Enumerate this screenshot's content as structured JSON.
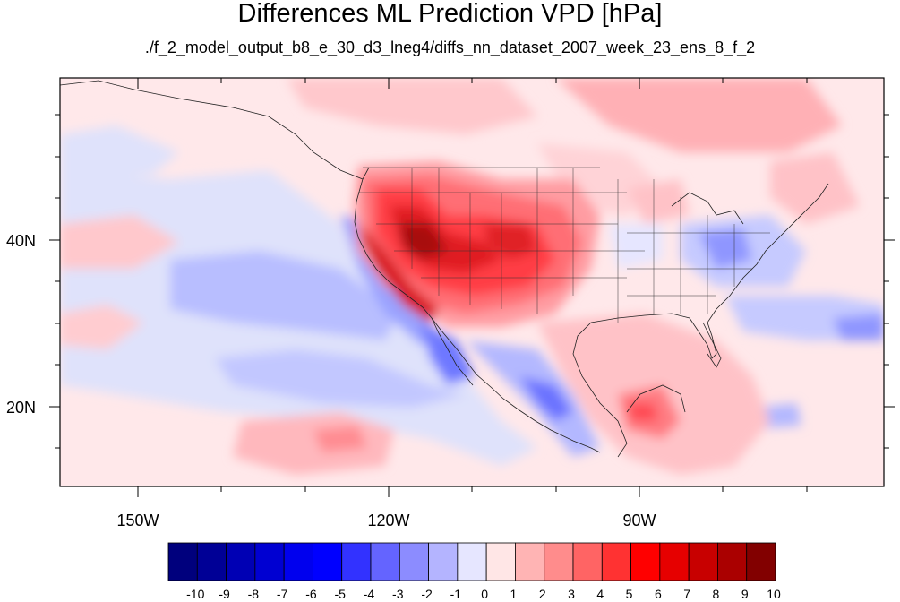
{
  "title": "Differences ML Prediction VPD [hPa]",
  "subtitle": "./f_2_model_output_b8_e_30_d3_lneg4/diffs_nn_dataset_2007_week_23_ens_8_f_2",
  "axes": {
    "lon_labels": [
      "150W",
      "120W",
      "90W"
    ],
    "lat_labels": [
      "40N",
      "20N"
    ]
  },
  "colorbar": {
    "labels": [
      "-10",
      "-9",
      "-8",
      "-7",
      "-6",
      "-5",
      "-4",
      "-3",
      "-2",
      "-1",
      "0",
      "1",
      "2",
      "3",
      "4",
      "5",
      "6",
      "7",
      "8",
      "9",
      "10"
    ],
    "colors": [
      "#00007d",
      "#000096",
      "#0000b4",
      "#0000d2",
      "#0000ee",
      "#0000ff",
      "#3232ff",
      "#6464ff",
      "#8c8cff",
      "#b4b4ff",
      "#e6e6ff",
      "#ffe6e6",
      "#ffb4b4",
      "#ff8c8c",
      "#ff6464",
      "#ff3232",
      "#ff0000",
      "#e60000",
      "#c80000",
      "#aa0000",
      "#820000"
    ]
  }
}
